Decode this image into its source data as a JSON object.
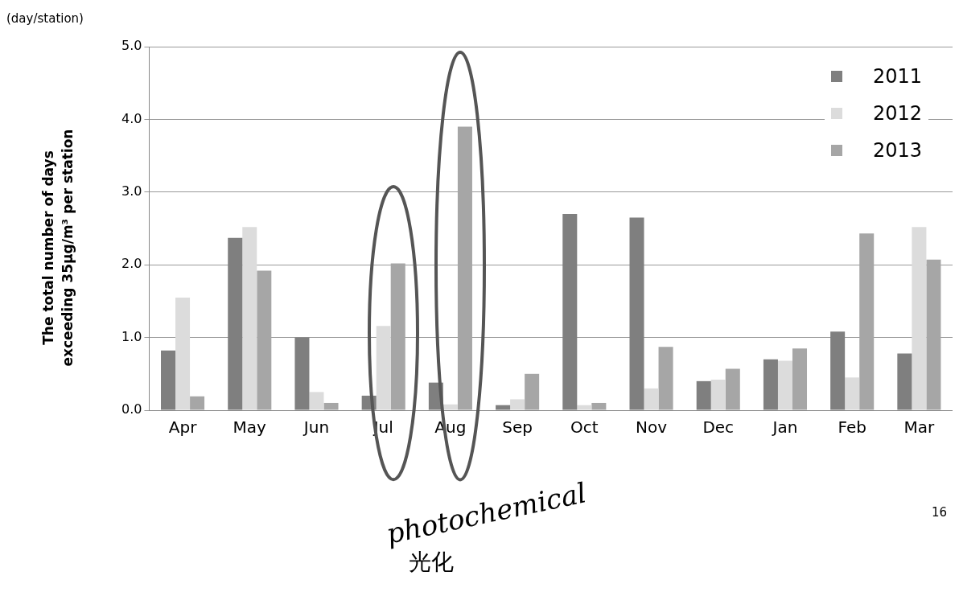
{
  "chart_data": {
    "type": "bar",
    "ylabel": "The total number of days exceeding 35μg/m³ per station",
    "categories": [
      "Apr",
      "May",
      "Jun",
      "Jul",
      "Aug",
      "Sep",
      "Oct",
      "Nov",
      "Dec",
      "Jan",
      "Feb",
      "Mar"
    ],
    "series": [
      {
        "name": "2011",
        "color": "#7f7f7f",
        "values": [
          0.82,
          2.37,
          1.0,
          0.2,
          0.38,
          0.07,
          2.7,
          2.65,
          0.4,
          0.7,
          1.08,
          0.78
        ]
      },
      {
        "name": "2012",
        "color": "#dcdcdc",
        "values": [
          1.55,
          2.52,
          0.25,
          1.16,
          0.08,
          0.15,
          0.07,
          0.3,
          0.42,
          0.68,
          0.45,
          2.52
        ]
      },
      {
        "name": "2013",
        "color": "#a6a6a6",
        "values": [
          0.19,
          1.92,
          0.1,
          2.02,
          3.9,
          0.5,
          0.1,
          0.87,
          0.57,
          0.85,
          2.43,
          2.07
        ]
      }
    ],
    "ylim": [
      0,
      5
    ],
    "yticks": [
      {
        "value": 0,
        "label": "0.0"
      },
      {
        "value": 1,
        "label": "1.0"
      },
      {
        "value": 2,
        "label": "2.0"
      },
      {
        "value": 3,
        "label": "3.0"
      },
      {
        "value": 4,
        "label": "4.0"
      },
      {
        "value": 5,
        "label": "5.0"
      }
    ],
    "grid": "y",
    "legend": "top right",
    "annotations": [
      "(day/station)",
      "photochemical",
      "光化",
      "16"
    ]
  }
}
